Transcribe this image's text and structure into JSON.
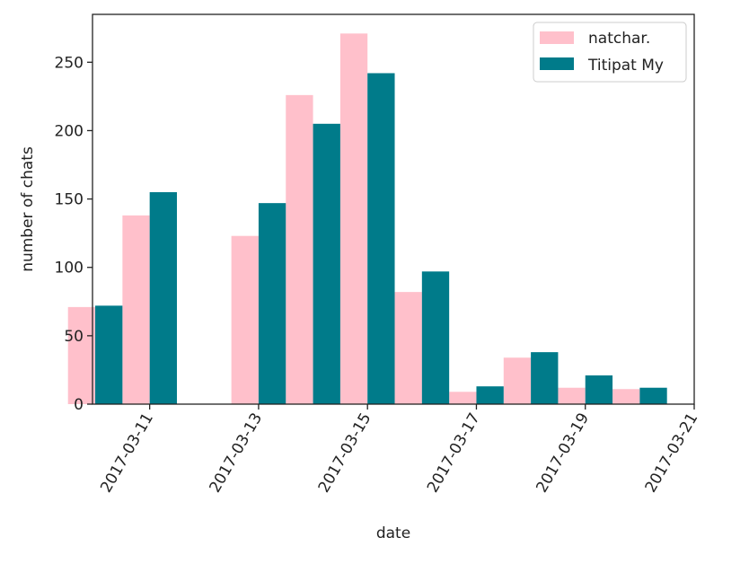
{
  "chart_data": {
    "type": "bar",
    "title": "",
    "xlabel": "date",
    "ylabel": "number of chats",
    "x": [
      "2017-03-10",
      "2017-03-11",
      "2017-03-13",
      "2017-03-14",
      "2017-03-15",
      "2017-03-16",
      "2017-03-17",
      "2017-03-18",
      "2017-03-19",
      "2017-03-20"
    ],
    "series": [
      {
        "name": "natchar.",
        "color": "#ffc0cb",
        "values": [
          71,
          138,
          123,
          226,
          271,
          82,
          9,
          34,
          12,
          11
        ]
      },
      {
        "name": "Titipat My",
        "color": "#007b8a",
        "values": [
          72,
          155,
          147,
          205,
          242,
          97,
          13,
          38,
          21,
          12
        ]
      }
    ],
    "xlim": [
      "2017-03-09T22:48",
      "2017-03-21T00:00"
    ],
    "ylim": [
      0,
      285
    ],
    "xticks": [
      "2017-03-11",
      "2017-03-13",
      "2017-03-15",
      "2017-03-17",
      "2017-03-19",
      "2017-03-21"
    ],
    "yticks": [
      0,
      50,
      100,
      150,
      200,
      250
    ],
    "bar_width_days": 0.5,
    "grid": false,
    "legend_position": "top-right"
  }
}
